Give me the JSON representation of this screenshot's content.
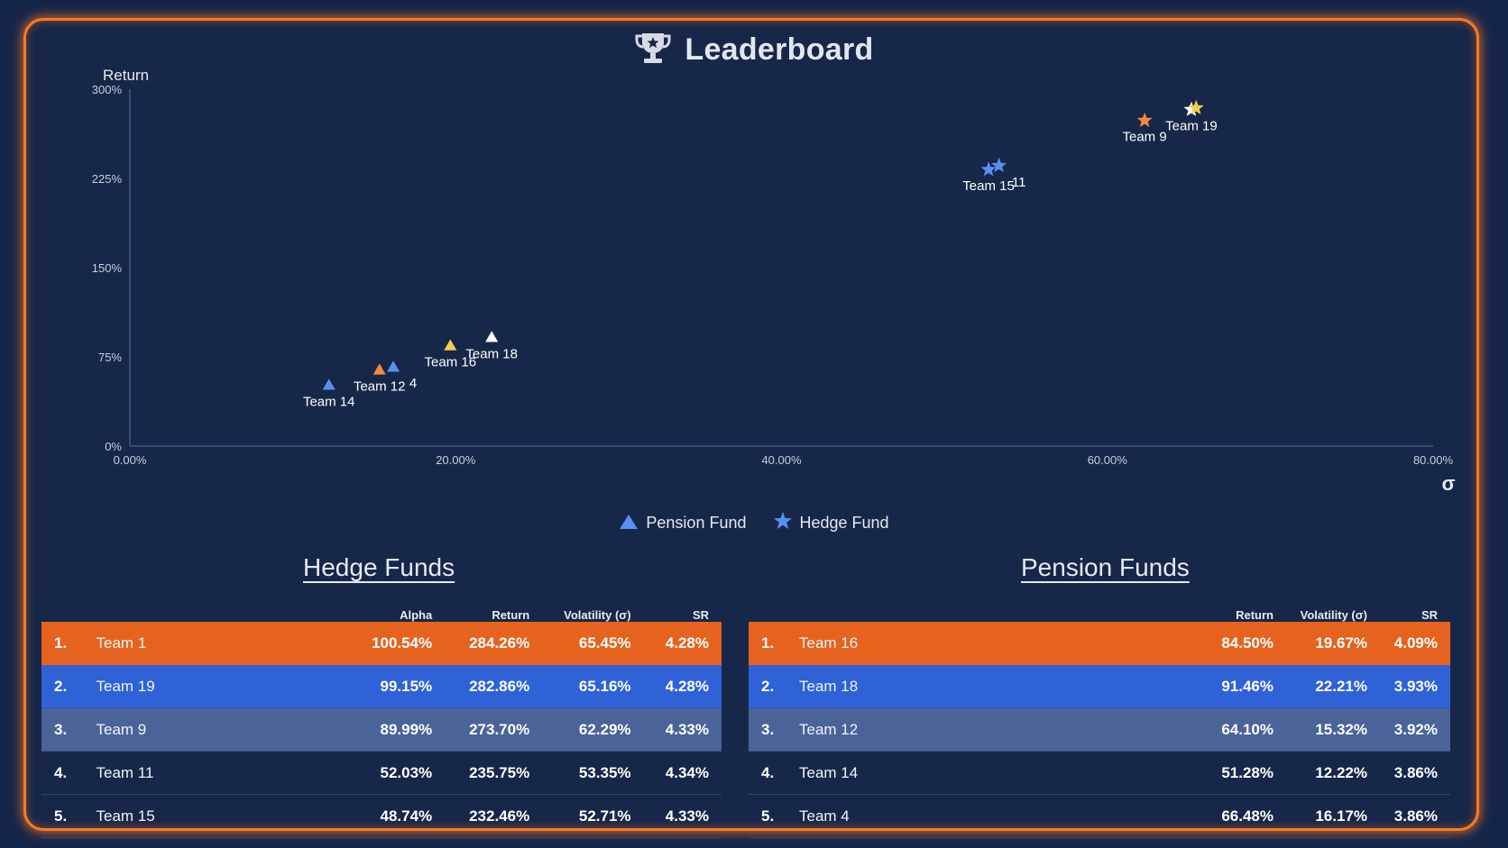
{
  "app": {
    "title": "Leaderboard",
    "accent_color": "#ff7a1f",
    "background_color": "#172749",
    "icons": [
      "trophy-icon",
      "triangle-icon",
      "star-icon"
    ]
  },
  "chart_data": {
    "type": "scatter",
    "title": "Leaderboard",
    "xlabel": "σ",
    "ylabel": "Return",
    "xlim": [
      0,
      80
    ],
    "ylim": [
      0,
      300
    ],
    "x_ticks": [
      "0.00%",
      "20.00%",
      "40.00%",
      "60.00%",
      "80.00%"
    ],
    "y_ticks": [
      "0%",
      "75%",
      "150%",
      "225%",
      "300%"
    ],
    "grid": false,
    "legend_placement": "bottom-center",
    "series": [
      {
        "name": "Pension Fund",
        "marker": "triangle",
        "points": [
          {
            "label": "Team 14",
            "x": 12.22,
            "y": 51.28,
            "color": "#5a8ff0"
          },
          {
            "label": "Team 12",
            "x": 15.32,
            "y": 64.1,
            "color": "#f28a3c"
          },
          {
            "label": "4",
            "x": 16.17,
            "y": 66.48,
            "color": "#5a8ff0"
          },
          {
            "label": "Team 16",
            "x": 19.67,
            "y": 84.5,
            "color": "#f5cc4a"
          },
          {
            "label": "Team 18",
            "x": 22.21,
            "y": 91.46,
            "color": "#ffffff"
          }
        ]
      },
      {
        "name": "Hedge Fund",
        "marker": "star",
        "points": [
          {
            "label": "Team 15",
            "x": 52.71,
            "y": 232.46,
            "color": "#5a8ff0"
          },
          {
            "label": "11",
            "x": 53.35,
            "y": 235.75,
            "color": "#5a8ff0"
          },
          {
            "label": "Team 9",
            "x": 62.29,
            "y": 273.7,
            "color": "#f28a3c"
          },
          {
            "label": "Team 19",
            "x": 65.16,
            "y": 282.86,
            "color": "#ffffff"
          },
          {
            "label": "",
            "x": 65.45,
            "y": 284.26,
            "color": "#f5cc4a"
          }
        ]
      }
    ]
  },
  "legend": {
    "pension_label": "Pension Fund",
    "hedge_label": "Hedge Fund",
    "color": "#5a8ff0"
  },
  "hedge": {
    "title": "Hedge Funds",
    "headers": [
      "Alpha",
      "Return",
      "Volatility (σ)",
      "SR"
    ],
    "rows": [
      {
        "rank": "1.",
        "team": "Team 1",
        "alpha": "100.54%",
        "return": "284.26%",
        "vol": "65.45%",
        "sr": "4.28%"
      },
      {
        "rank": "2.",
        "team": "Team 19",
        "alpha": "99.15%",
        "return": "282.86%",
        "vol": "65.16%",
        "sr": "4.28%"
      },
      {
        "rank": "3.",
        "team": "Team 9",
        "alpha": "89.99%",
        "return": "273.70%",
        "vol": "62.29%",
        "sr": "4.33%"
      },
      {
        "rank": "4.",
        "team": "Team 11",
        "alpha": "52.03%",
        "return": "235.75%",
        "vol": "53.35%",
        "sr": "4.34%"
      },
      {
        "rank": "5.",
        "team": "Team 15",
        "alpha": "48.74%",
        "return": "232.46%",
        "vol": "52.71%",
        "sr": "4.33%"
      }
    ]
  },
  "pension": {
    "title": "Pension Funds",
    "headers": [
      "Return",
      "Volatility (σ)",
      "SR"
    ],
    "rows": [
      {
        "rank": "1.",
        "team": "Team 16",
        "return": "84.50%",
        "vol": "19.67%",
        "sr": "4.09%"
      },
      {
        "rank": "2.",
        "team": "Team 18",
        "return": "91.46%",
        "vol": "22.21%",
        "sr": "3.93%"
      },
      {
        "rank": "3.",
        "team": "Team 12",
        "return": "64.10%",
        "vol": "15.32%",
        "sr": "3.92%"
      },
      {
        "rank": "4.",
        "team": "Team 14",
        "return": "51.28%",
        "vol": "12.22%",
        "sr": "3.86%"
      },
      {
        "rank": "5.",
        "team": "Team 4",
        "return": "66.48%",
        "vol": "16.17%",
        "sr": "3.86%"
      }
    ]
  }
}
